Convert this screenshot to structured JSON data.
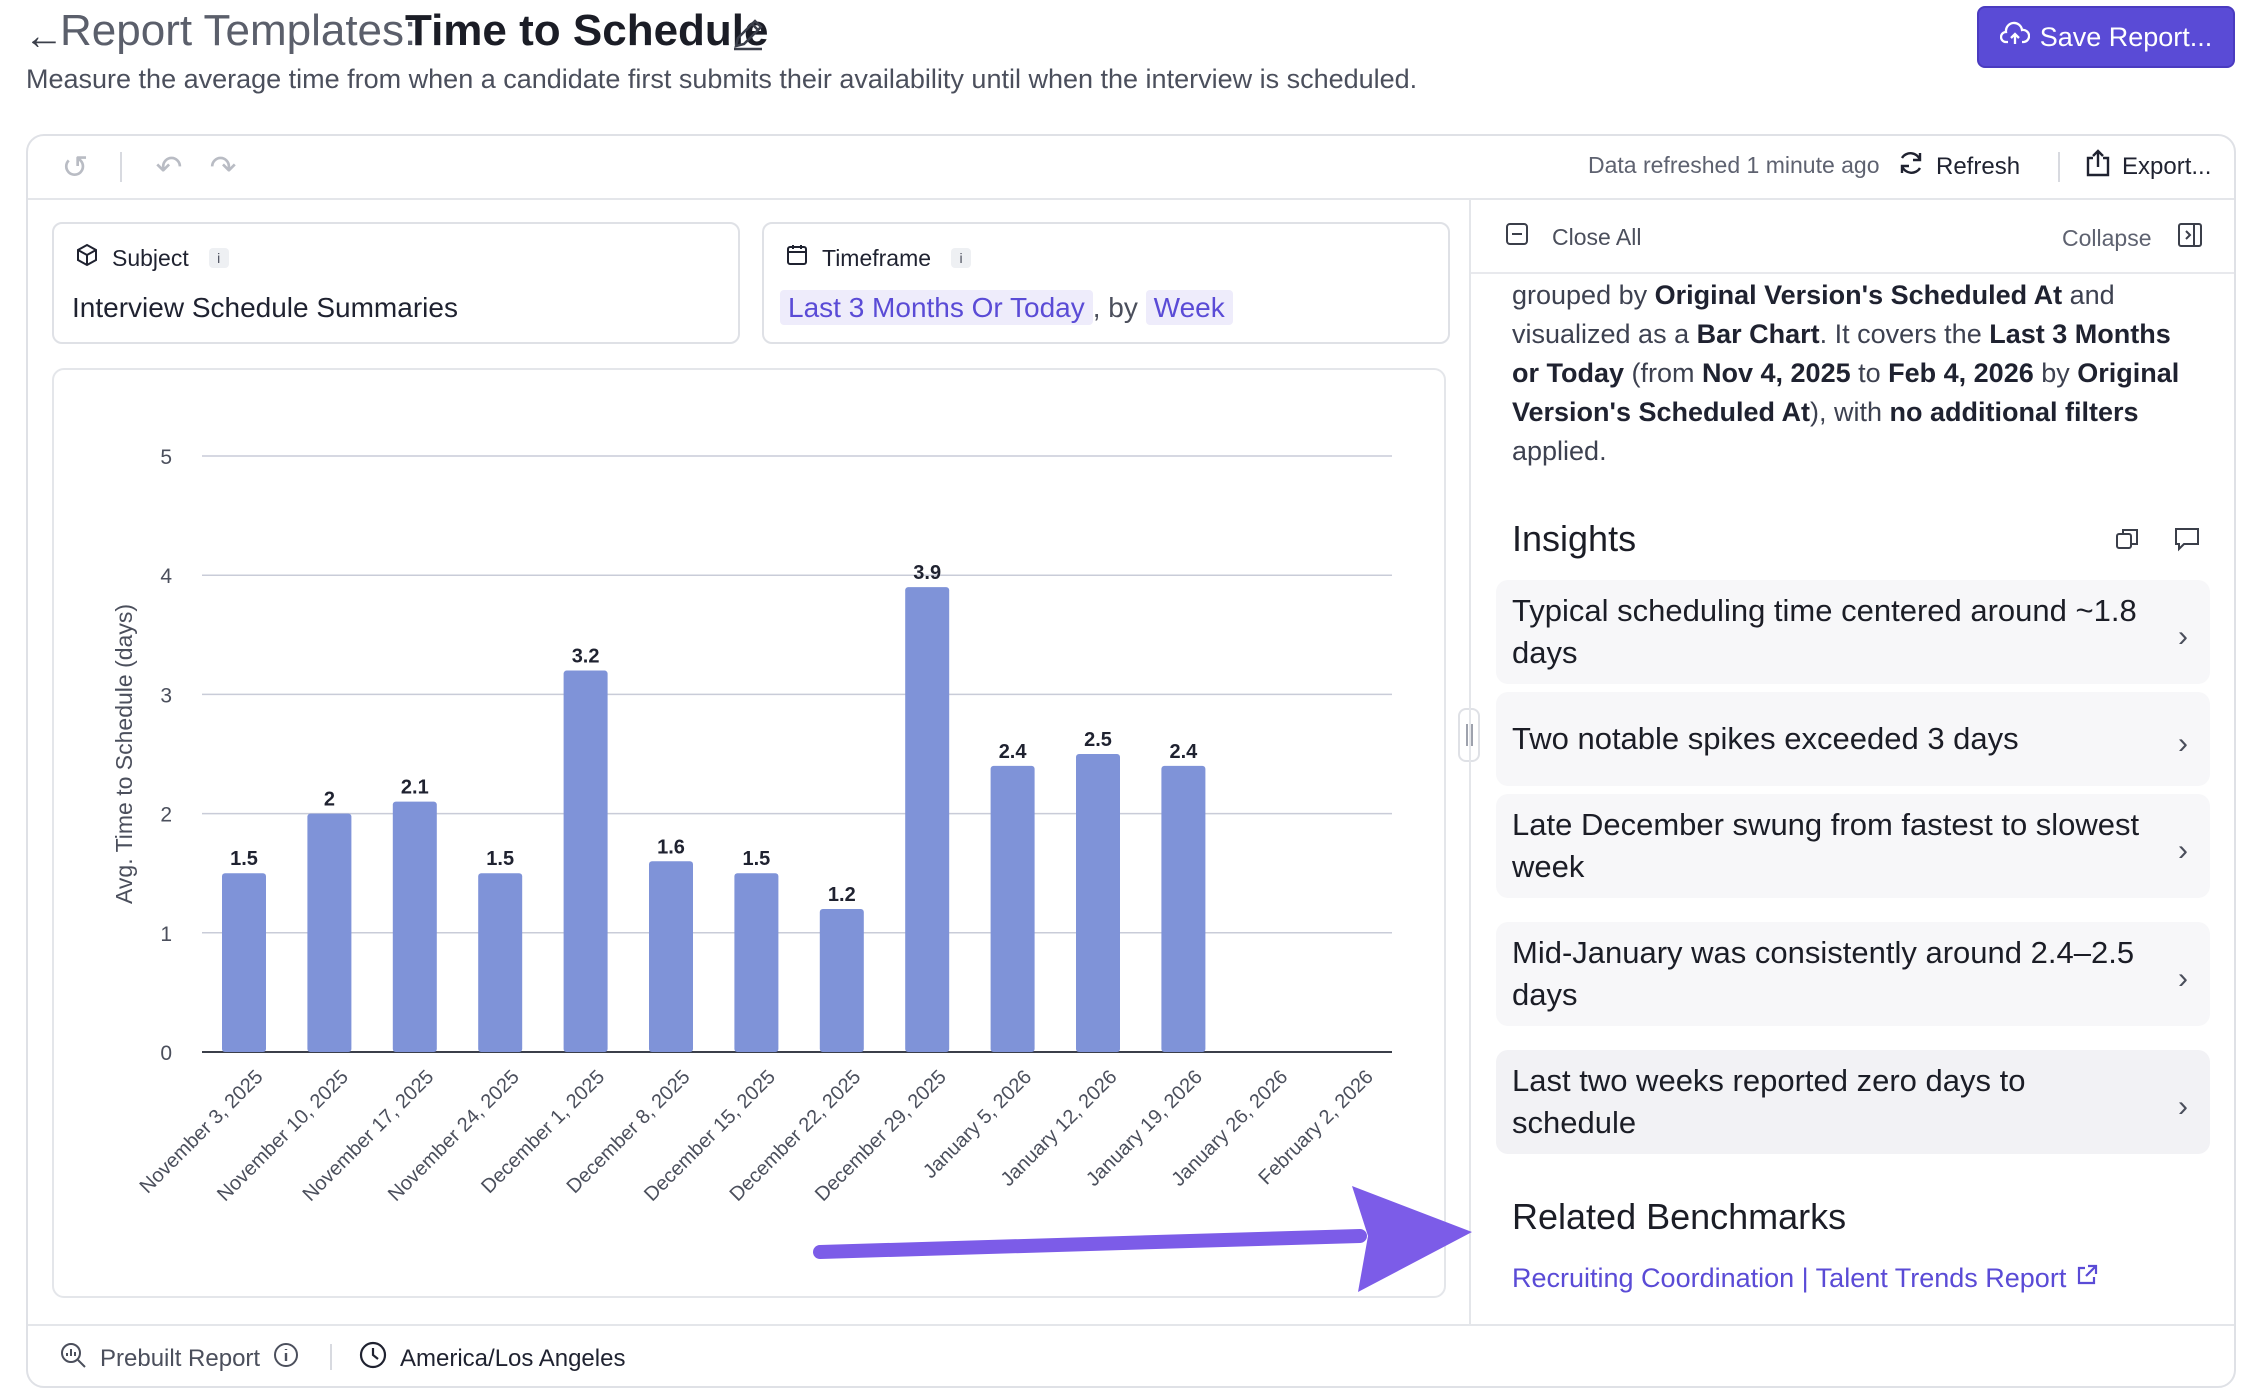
{
  "header": {
    "back_icon": "arrow-left-icon",
    "title_prefix": "Report Templates:",
    "title": "Time to Schedule",
    "subtitle": "Measure the average time from when a candidate first submits their availability until when the interview is scheduled.",
    "save_label": "Save Report..."
  },
  "toolbar": {
    "refreshed_text": "Data refreshed 1 minute ago",
    "refresh_label": "Refresh",
    "export_label": "Export..."
  },
  "subject": {
    "label": "Subject",
    "value": "Interview Schedule Summaries"
  },
  "timeframe": {
    "label": "Timeframe",
    "range": "Last 3 Months Or Today",
    "by_text": ", by",
    "granularity": "Week"
  },
  "right_panel": {
    "close_all_label": "Close All",
    "collapse_label": "Collapse",
    "insights_title": "Insights",
    "insights": [
      "Typical scheduling time centered around ~1.8 days",
      "Two notable spikes exceeded 3 days",
      "Late December swung from fastest to slowest week",
      "Mid-January was consistently around 2.4–2.5 days",
      "Last two weeks reported zero days to schedule"
    ],
    "benchmarks_title": "Related Benchmarks",
    "benchmark_link": "Recruiting Coordination | Talent Trends Report"
  },
  "footer": {
    "prebuilt_label": "Prebuilt Report",
    "timezone": "America/Los Angeles"
  },
  "colors": {
    "accent": "#5a4bd6",
    "bar": "#7f93d8",
    "arrow": "#7c5ce8"
  },
  "chart_data": {
    "type": "bar",
    "ylabel": "Avg. Time to Schedule (days)",
    "xlabel": "",
    "ylim": [
      0,
      5
    ],
    "yticks": [
      0,
      1,
      2,
      3,
      4,
      5
    ],
    "grid": true,
    "categories": [
      "November 3, 2025",
      "November 10, 2025",
      "November 17, 2025",
      "November 24, 2025",
      "December 1, 2025",
      "December 8, 2025",
      "December 15, 2025",
      "December 22, 2025",
      "December 29, 2025",
      "January 5, 2026",
      "January 12, 2026",
      "January 19, 2026",
      "January 26, 2026",
      "February 2, 2026"
    ],
    "values": [
      1.5,
      2,
      2.1,
      1.5,
      3.2,
      1.6,
      1.5,
      1.2,
      3.9,
      2.4,
      2.5,
      2.4,
      0,
      0
    ],
    "labels": [
      "1.5",
      "2",
      "2.1",
      "1.5",
      "3.2",
      "1.6",
      "1.5",
      "1.2",
      "3.9",
      "2.4",
      "2.5",
      "2.4",
      "",
      ""
    ]
  }
}
